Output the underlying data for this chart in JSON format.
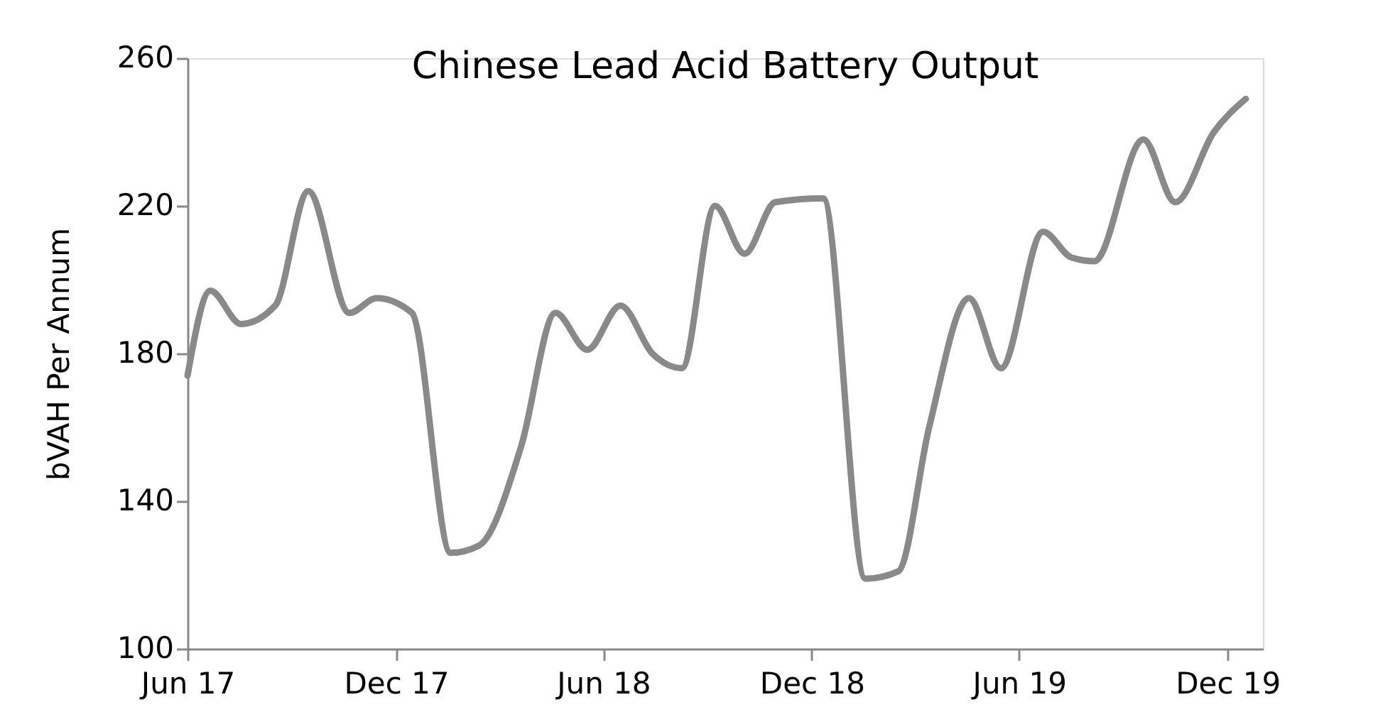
{
  "chart_data": {
    "type": "line",
    "title": "Chinese Lead Acid Battery Output",
    "ylabel": "bVAH Per Annum",
    "x": [
      "2017-06-01",
      "2017-06-21",
      "2017-07-18",
      "2017-08-17",
      "2017-09-15",
      "2017-10-21",
      "2017-11-14",
      "2017-12-15",
      "2018-01-18",
      "2018-02-12",
      "2018-03-21",
      "2018-04-20",
      "2018-05-18",
      "2018-06-16",
      "2018-07-14",
      "2018-08-09",
      "2018-09-07",
      "2018-10-03",
      "2018-10-30",
      "2018-12-11",
      "2019-01-17",
      "2019-02-15",
      "2019-03-14",
      "2019-04-18",
      "2019-05-16",
      "2019-06-22",
      "2019-07-17",
      "2019-08-06",
      "2019-09-18",
      "2019-10-16",
      "2019-11-19",
      "2019-12-17"
    ],
    "series": [
      {
        "color": "#898989",
        "values": [
          174,
          197,
          188,
          193,
          224,
          191,
          195,
          191,
          126,
          128,
          155,
          191,
          181,
          193,
          180,
          176,
          220,
          207,
          221,
          222,
          119,
          121,
          160,
          195,
          176,
          213,
          206,
          205,
          238,
          221,
          240,
          249
        ]
      }
    ],
    "xlim": [
      "2017-06-01",
      "2020-01-01"
    ],
    "xticks": [
      {
        "value": "2017-06-01",
        "label": "Jun 17"
      },
      {
        "value": "2017-12-01",
        "label": "Dec 17"
      },
      {
        "value": "2018-06-01",
        "label": "Jun 18"
      },
      {
        "value": "2018-12-01",
        "label": "Dec 18"
      },
      {
        "value": "2019-06-01",
        "label": "Jun 19"
      },
      {
        "value": "2019-12-01",
        "label": "Dec 19"
      }
    ],
    "ylim": [
      100,
      260
    ],
    "yticks": [
      100,
      140,
      180,
      220,
      260
    ],
    "grid": false,
    "marker": "none",
    "line_style": "solid"
  }
}
